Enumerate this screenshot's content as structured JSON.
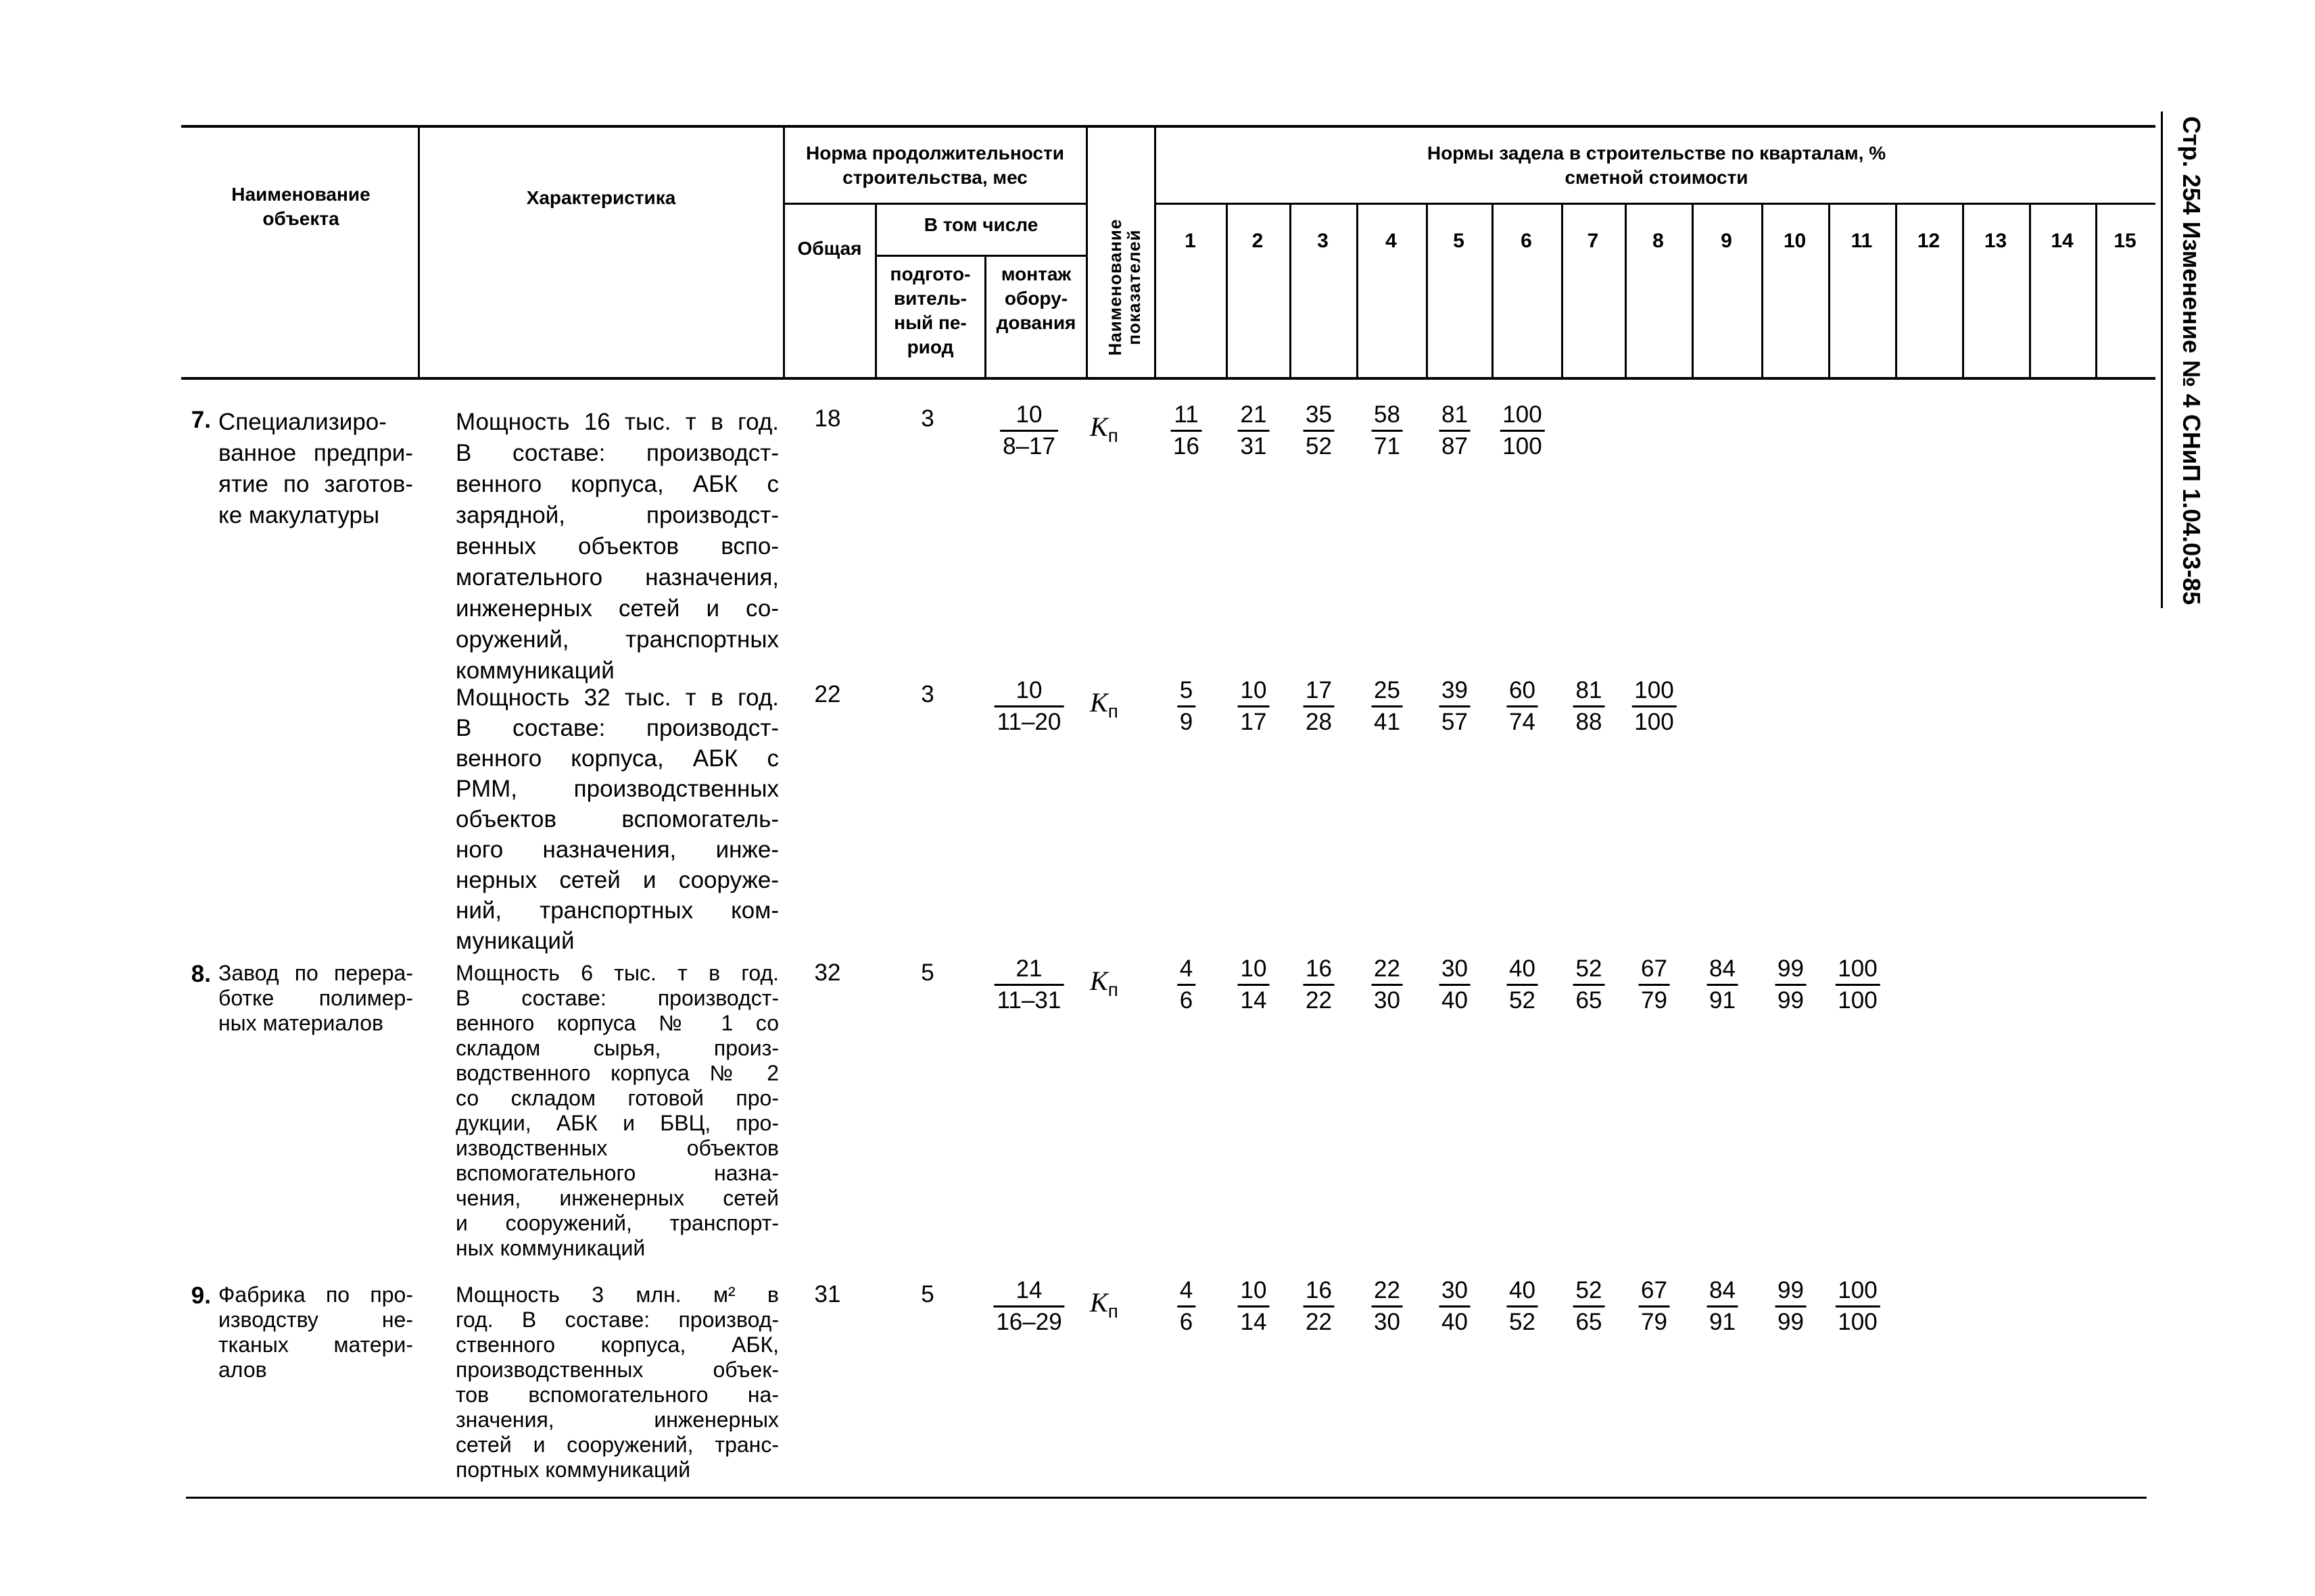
{
  "side_title": "Стр. 254 Изменение № 4 СНиП 1.04.03-85",
  "header": {
    "name_col": "Наименование объекта",
    "char_col": "Характеристика",
    "duration_group": "Норма продолжительности строительства, мес",
    "total": "Общая",
    "including": "В том числе",
    "prep": "подгото-вительный пе-риод",
    "prep_lines": [
      "подгото-",
      "витель-",
      "ный пе-",
      "риод"
    ],
    "mount_lines": [
      "монтаж",
      "обору-",
      "дования"
    ],
    "indicator_lines": [
      "Наименование",
      "показателей"
    ],
    "quarters_group": "Нормы задела в строительстве по кварталам, % сметной стоимости",
    "quarters": [
      "1",
      "2",
      "3",
      "4",
      "5",
      "6",
      "7",
      "8",
      "9",
      "10",
      "11",
      "12",
      "13",
      "14",
      "15"
    ]
  },
  "rows": [
    {
      "number": "7.",
      "name_lines": [
        "Специализиро-",
        "ванное предпри-",
        "ятие по заготов-",
        "ке макулатуры"
      ],
      "char_lines": [
        "Мощность 16 тыс. т в год.",
        "В составе: производст-",
        "венного корпуса, АБК с",
        "зарядной, производст-",
        "венных объектов вспо-",
        "могательного назначения,",
        "инженерных сетей и со-",
        "оружений, транспортных",
        "коммуникаций"
      ],
      "total": "18",
      "prep": "3",
      "mount": {
        "num": "10",
        "den": "8–17"
      },
      "indicator": "K",
      "indicator_sub": "п",
      "fractions": [
        {
          "num": "11",
          "den": "16"
        },
        {
          "num": "21",
          "den": "31"
        },
        {
          "num": "35",
          "den": "52"
        },
        {
          "num": "58",
          "den": "71"
        },
        {
          "num": "81",
          "den": "87"
        },
        {
          "num": "100",
          "den": "100"
        }
      ]
    },
    {
      "number": "",
      "name_lines": [],
      "char_lines": [
        "Мощность 32 тыс. т в год.",
        "В составе: производст-",
        "венного корпуса, АБК с",
        "РММ, производственных",
        "объектов вспомогатель-",
        "ного назначения, инже-",
        "нерных сетей и сооруже-",
        "ний, транспортных ком-",
        "муникаций"
      ],
      "total": "22",
      "prep": "3",
      "mount": {
        "num": "10",
        "den": "11–20"
      },
      "indicator": "K",
      "indicator_sub": "п",
      "fractions": [
        {
          "num": "5",
          "den": "9"
        },
        {
          "num": "10",
          "den": "17"
        },
        {
          "num": "17",
          "den": "28"
        },
        {
          "num": "25",
          "den": "41"
        },
        {
          "num": "39",
          "den": "57"
        },
        {
          "num": "60",
          "den": "74"
        },
        {
          "num": "81",
          "den": "88"
        },
        {
          "num": "100",
          "den": "100"
        }
      ]
    },
    {
      "number": "8.",
      "name_lines": [
        "Завод по перера-",
        "ботке полимер-",
        "ных материалов"
      ],
      "char_lines": [
        "Мощность 6 тыс. т в год.",
        "В составе: производст-",
        "венного корпуса № 1 со",
        "складом сырья, произ-",
        "водственного корпуса № 2",
        "со складом готовой про-",
        "дукции, АБК и БВЦ, про-",
        "изводственных объектов",
        "вспомогательного назна-",
        "чения, инженерных сетей",
        "и сооружений, транспорт-",
        "ных коммуникаций"
      ],
      "total": "32",
      "prep": "5",
      "mount": {
        "num": "21",
        "den": "11–31"
      },
      "indicator": "K",
      "indicator_sub": "п",
      "fractions": [
        {
          "num": "4",
          "den": "6"
        },
        {
          "num": "10",
          "den": "14"
        },
        {
          "num": "16",
          "den": "22"
        },
        {
          "num": "22",
          "den": "30"
        },
        {
          "num": "30",
          "den": "40"
        },
        {
          "num": "40",
          "den": "52"
        },
        {
          "num": "52",
          "den": "65"
        },
        {
          "num": "67",
          "den": "79"
        },
        {
          "num": "84",
          "den": "91"
        },
        {
          "num": "99",
          "den": "99"
        },
        {
          "num": "100",
          "den": "100"
        }
      ]
    },
    {
      "number": "9.",
      "name_lines": [
        "Фабрика по про-",
        "изводству не-",
        "тканых матери-",
        "алов"
      ],
      "char_lines": [
        "Мощность 3 млн. м² в",
        "год. В составе: производ-",
        "ственного корпуса, АБК,",
        "производственных объек-",
        "тов вспомогательного на-",
        "значения, инженерных",
        "сетей и сооружений, транс-",
        "портных коммуникаций"
      ],
      "total": "31",
      "prep": "5",
      "mount": {
        "num": "14",
        "den": "16–29"
      },
      "indicator": "K",
      "indicator_sub": "п",
      "fractions": [
        {
          "num": "4",
          "den": "6"
        },
        {
          "num": "10",
          "den": "14"
        },
        {
          "num": "16",
          "den": "22"
        },
        {
          "num": "22",
          "den": "30"
        },
        {
          "num": "30",
          "den": "40"
        },
        {
          "num": "40",
          "den": "52"
        },
        {
          "num": "52",
          "den": "65"
        },
        {
          "num": "67",
          "den": "79"
        },
        {
          "num": "84",
          "den": "91"
        },
        {
          "num": "99",
          "den": "99"
        },
        {
          "num": "100",
          "den": "100"
        }
      ]
    }
  ]
}
